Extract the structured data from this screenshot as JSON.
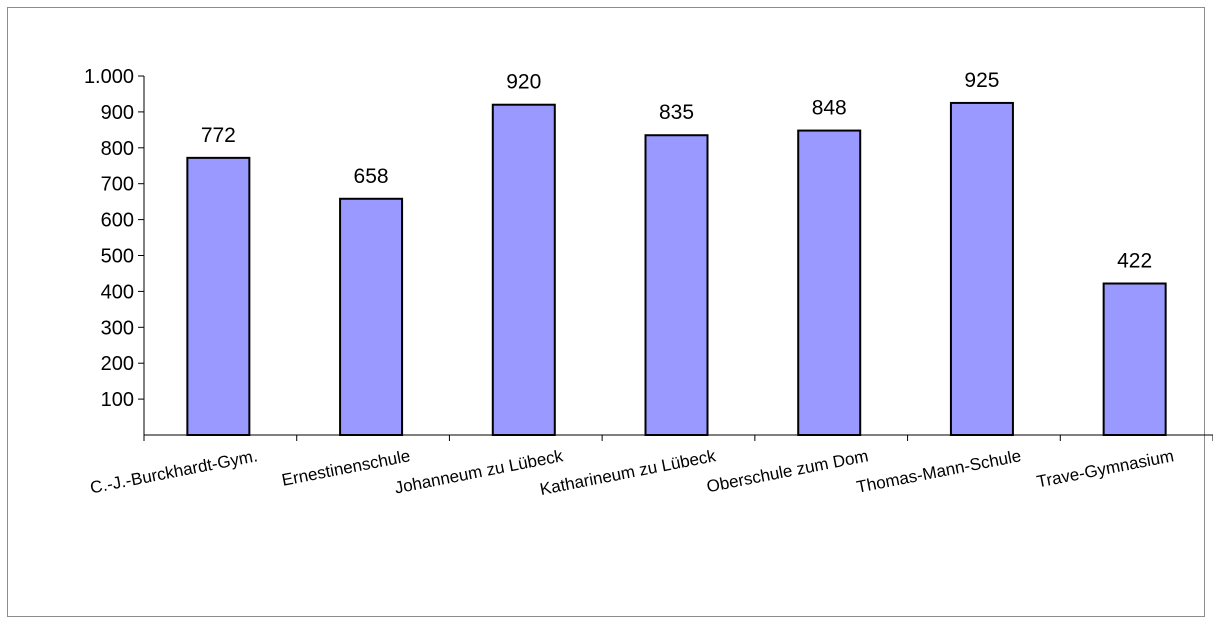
{
  "chart_data": {
    "type": "bar",
    "categories": [
      "C.-J.-Burckhardt-Gym.",
      "Ernestinenschule",
      "Johanneum zu Lübeck",
      "Katharineum zu Lübeck",
      "Oberschule zum Dom",
      "Thomas-Mann-Schule",
      "Trave-Gymnasium"
    ],
    "values": [
      772,
      658,
      920,
      835,
      848,
      925,
      422
    ],
    "data_labels": [
      "772",
      "658",
      "920",
      "835",
      "848",
      "925",
      "422"
    ],
    "yticks": [
      {
        "value": 100,
        "label": "100"
      },
      {
        "value": 200,
        "label": "200"
      },
      {
        "value": 300,
        "label": "300"
      },
      {
        "value": 400,
        "label": "400"
      },
      {
        "value": 500,
        "label": "500"
      },
      {
        "value": 600,
        "label": "600"
      },
      {
        "value": 700,
        "label": "700"
      },
      {
        "value": 800,
        "label": "800"
      },
      {
        "value": 900,
        "label": "900"
      },
      {
        "value": 1000,
        "label": "1.000"
      }
    ],
    "title": "",
    "xlabel": "",
    "ylabel": "",
    "ylim": [
      0,
      1000
    ],
    "grid": false,
    "legend": "none",
    "bar_color": "#9999ff"
  }
}
